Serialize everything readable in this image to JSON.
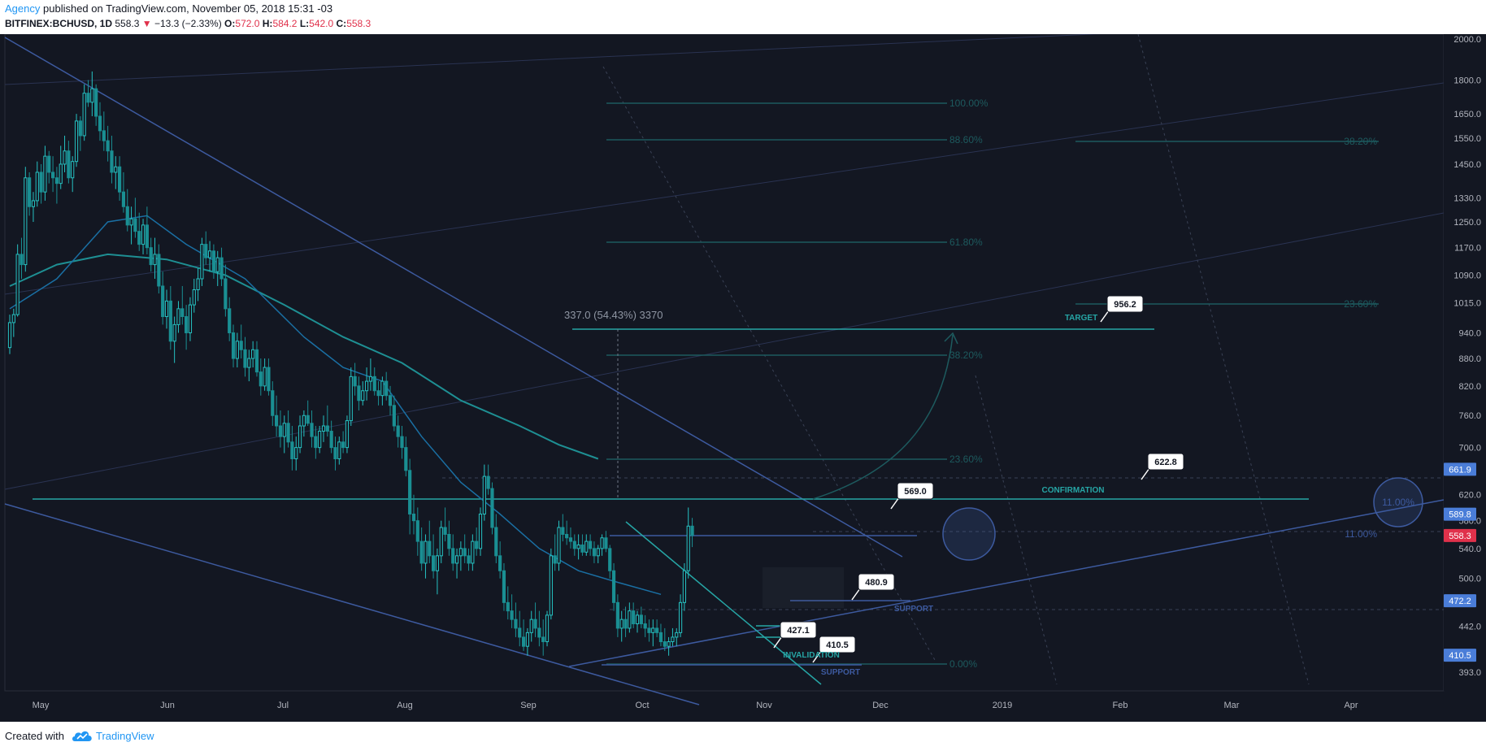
{
  "header": {
    "author": "Agency",
    "published": "published on TradingView.com, November 05, 2018 15:31 -03",
    "symbol": "BITFINEX:BCHUSD, 1D",
    "last": "558.3",
    "change_arrow": "▼",
    "change": "−13.3 (−2.33%)",
    "o_label": "O:",
    "o": "572.0",
    "h_label": "H:",
    "h": "584.2",
    "l_label": "L:",
    "l": "542.0",
    "c_label": "C:",
    "c": "558.3"
  },
  "footer": {
    "created_with": "Created with",
    "brand": "TradingView",
    "logo_icon": "tradingview-cloud-icon"
  },
  "colors": {
    "background": "#131722",
    "teal": "#26a5a5",
    "blue": "#3d5a9f",
    "fib": "#1d5a5e",
    "axis_text": "#b2b5be",
    "price_badge": "#4a7dd8",
    "last_badge": "#e0314b"
  },
  "chart_data": {
    "type": "candlestick",
    "scale": "log",
    "ylim": [
      380,
      2050
    ],
    "y_ticks": [
      "2000.0",
      "1800.0",
      "1650.0",
      "1550.0",
      "1450.0",
      "1330.0",
      "1250.0",
      "1170.0",
      "1090.0",
      "1015.0",
      "940.0",
      "880.0",
      "820.0",
      "760.0",
      "700.0",
      "620.0",
      "580.0",
      "540.0",
      "500.0",
      "442.0",
      "393.0"
    ],
    "x_ticks": [
      "May",
      "Jun",
      "Jul",
      "Aug",
      "Sep",
      "Oct",
      "Nov",
      "Dec",
      "2019",
      "Feb",
      "Mar",
      "Apr"
    ],
    "badges": [
      {
        "value": "661.9",
        "color": "blue"
      },
      {
        "value": "589.8",
        "color": "blue"
      },
      {
        "value": "558.3",
        "color": "red"
      },
      {
        "value": "472.2",
        "color": "blue"
      },
      {
        "value": "410.5",
        "color": "blue"
      }
    ],
    "fib_retracement_left": [
      "100.00%",
      "88.60%",
      "61.80%",
      "38.20%",
      "23.60%",
      "0.00%"
    ],
    "fib_extension_right": [
      "38.20%",
      "23.60%",
      "11.00%"
    ],
    "measure_label": "337.0 (54.43%) 3370",
    "callouts": [
      "956.2",
      "622.8",
      "569.0",
      "480.9",
      "427.1",
      "410.5"
    ],
    "annotations": [
      "TARGET",
      "CONFIRMATION",
      "SUPPORT",
      "INVALIDATION",
      "SUPPORT",
      "11.00%"
    ],
    "candles_ohlc": [
      [
        905,
        985,
        890,
        965
      ],
      [
        965,
        1000,
        930,
        985
      ],
      [
        985,
        1180,
        980,
        1150
      ],
      [
        1150,
        1200,
        1080,
        1120
      ],
      [
        1120,
        1440,
        1100,
        1400
      ],
      [
        1400,
        1420,
        1270,
        1300
      ],
      [
        1300,
        1350,
        1250,
        1320
      ],
      [
        1320,
        1460,
        1300,
        1420
      ],
      [
        1420,
        1450,
        1310,
        1350
      ],
      [
        1350,
        1520,
        1320,
        1480
      ],
      [
        1480,
        1500,
        1380,
        1420
      ],
      [
        1420,
        1480,
        1350,
        1400
      ],
      [
        1400,
        1440,
        1310,
        1380
      ],
      [
        1380,
        1520,
        1360,
        1450
      ],
      [
        1450,
        1560,
        1420,
        1500
      ],
      [
        1500,
        1540,
        1380,
        1400
      ],
      [
        1400,
        1480,
        1350,
        1460
      ],
      [
        1460,
        1650,
        1440,
        1620
      ],
      [
        1620,
        1640,
        1500,
        1560
      ],
      [
        1560,
        1780,
        1540,
        1740
      ],
      [
        1740,
        1800,
        1680,
        1700
      ],
      [
        1700,
        1840,
        1640,
        1760
      ],
      [
        1760,
        1780,
        1600,
        1640
      ],
      [
        1640,
        1700,
        1540,
        1580
      ],
      [
        1580,
        1660,
        1500,
        1540
      ],
      [
        1540,
        1600,
        1460,
        1500
      ],
      [
        1500,
        1560,
        1380,
        1420
      ],
      [
        1420,
        1480,
        1360,
        1440
      ],
      [
        1440,
        1480,
        1320,
        1350
      ],
      [
        1350,
        1420,
        1280,
        1300
      ],
      [
        1300,
        1360,
        1220,
        1240
      ],
      [
        1240,
        1300,
        1180,
        1260
      ],
      [
        1260,
        1330,
        1200,
        1220
      ],
      [
        1220,
        1280,
        1160,
        1180
      ],
      [
        1180,
        1260,
        1150,
        1240
      ],
      [
        1240,
        1300,
        1150,
        1170
      ],
      [
        1170,
        1200,
        1100,
        1120
      ],
      [
        1120,
        1200,
        1080,
        1150
      ],
      [
        1150,
        1180,
        1040,
        1060
      ],
      [
        1060,
        1100,
        960,
        980
      ],
      [
        980,
        1050,
        950,
        1020
      ],
      [
        1020,
        1060,
        900,
        920
      ],
      [
        920,
        980,
        870,
        960
      ],
      [
        960,
        1020,
        940,
        1000
      ],
      [
        1000,
        1060,
        960,
        980
      ],
      [
        980,
        1010,
        900,
        940
      ],
      [
        940,
        1030,
        920,
        1010
      ],
      [
        1010,
        1080,
        990,
        1050
      ],
      [
        1050,
        1110,
        1020,
        1080
      ],
      [
        1080,
        1200,
        1060,
        1180
      ],
      [
        1180,
        1220,
        1120,
        1140
      ],
      [
        1140,
        1190,
        1100,
        1160
      ],
      [
        1160,
        1180,
        1080,
        1100
      ],
      [
        1100,
        1160,
        1060,
        1140
      ],
      [
        1140,
        1170,
        1060,
        1080
      ],
      [
        1080,
        1120,
        980,
        1000
      ],
      [
        1000,
        1030,
        920,
        940
      ],
      [
        940,
        960,
        860,
        880
      ],
      [
        880,
        940,
        860,
        920
      ],
      [
        920,
        960,
        880,
        900
      ],
      [
        900,
        930,
        840,
        860
      ],
      [
        860,
        900,
        830,
        880
      ],
      [
        880,
        920,
        860,
        900
      ],
      [
        900,
        920,
        840,
        850
      ],
      [
        850,
        880,
        800,
        820
      ],
      [
        820,
        880,
        810,
        860
      ],
      [
        860,
        880,
        800,
        810
      ],
      [
        810,
        830,
        740,
        760
      ],
      [
        760,
        800,
        720,
        740
      ],
      [
        740,
        770,
        700,
        720
      ],
      [
        720,
        760,
        690,
        745
      ],
      [
        745,
        770,
        700,
        710
      ],
      [
        710,
        740,
        660,
        680
      ],
      [
        680,
        720,
        660,
        700
      ],
      [
        700,
        760,
        690,
        740
      ],
      [
        740,
        770,
        720,
        760
      ],
      [
        760,
        790,
        740,
        745
      ],
      [
        745,
        770,
        700,
        720
      ],
      [
        720,
        740,
        680,
        700
      ],
      [
        700,
        740,
        690,
        730
      ],
      [
        730,
        760,
        710,
        740
      ],
      [
        740,
        780,
        720,
        730
      ],
      [
        730,
        750,
        690,
        700
      ],
      [
        700,
        720,
        660,
        680
      ],
      [
        680,
        720,
        670,
        710
      ],
      [
        710,
        730,
        690,
        700
      ],
      [
        700,
        760,
        690,
        750
      ],
      [
        750,
        860,
        740,
        840
      ],
      [
        840,
        870,
        800,
        820
      ],
      [
        820,
        840,
        770,
        790
      ],
      [
        790,
        830,
        780,
        810
      ],
      [
        810,
        860,
        790,
        830
      ],
      [
        830,
        880,
        810,
        840
      ],
      [
        840,
        860,
        800,
        810
      ],
      [
        810,
        830,
        780,
        800
      ],
      [
        800,
        840,
        780,
        830
      ],
      [
        830,
        850,
        790,
        800
      ],
      [
        800,
        820,
        760,
        780
      ],
      [
        780,
        800,
        730,
        740
      ],
      [
        740,
        760,
        700,
        720
      ],
      [
        720,
        740,
        680,
        700
      ],
      [
        700,
        720,
        650,
        660
      ],
      [
        660,
        680,
        560,
        590
      ],
      [
        590,
        620,
        560,
        580
      ],
      [
        580,
        600,
        530,
        550
      ],
      [
        550,
        570,
        510,
        520
      ],
      [
        520,
        560,
        500,
        550
      ],
      [
        550,
        580,
        520,
        530
      ],
      [
        530,
        560,
        500,
        510
      ],
      [
        510,
        540,
        480,
        530
      ],
      [
        530,
        580,
        520,
        570
      ],
      [
        570,
        600,
        550,
        560
      ],
      [
        560,
        580,
        530,
        540
      ],
      [
        540,
        560,
        510,
        520
      ],
      [
        520,
        540,
        500,
        530
      ],
      [
        530,
        550,
        510,
        540
      ],
      [
        540,
        560,
        520,
        530
      ],
      [
        530,
        540,
        510,
        520
      ],
      [
        520,
        560,
        510,
        550
      ],
      [
        550,
        570,
        530,
        540
      ],
      [
        540,
        600,
        530,
        590
      ],
      [
        590,
        670,
        580,
        650
      ],
      [
        650,
        670,
        620,
        630
      ],
      [
        630,
        640,
        560,
        570
      ],
      [
        570,
        590,
        520,
        530
      ],
      [
        530,
        550,
        500,
        510
      ],
      [
        510,
        520,
        460,
        470
      ],
      [
        470,
        490,
        450,
        460
      ],
      [
        460,
        480,
        440,
        450
      ],
      [
        450,
        470,
        430,
        440
      ],
      [
        440,
        460,
        420,
        430
      ],
      [
        430,
        450,
        415,
        420
      ],
      [
        420,
        440,
        410,
        435
      ],
      [
        435,
        460,
        425,
        450
      ],
      [
        450,
        470,
        430,
        440
      ],
      [
        440,
        460,
        420,
        430
      ],
      [
        430,
        450,
        410,
        425
      ],
      [
        425,
        460,
        420,
        455
      ],
      [
        455,
        540,
        450,
        530
      ],
      [
        530,
        560,
        510,
        520
      ],
      [
        520,
        580,
        510,
        570
      ],
      [
        570,
        590,
        550,
        560
      ],
      [
        560,
        580,
        545,
        555
      ],
      [
        555,
        570,
        540,
        550
      ],
      [
        550,
        560,
        530,
        540
      ],
      [
        540,
        560,
        525,
        545
      ],
      [
        545,
        560,
        530,
        535
      ],
      [
        535,
        560,
        530,
        550
      ],
      [
        550,
        560,
        530,
        540
      ],
      [
        540,
        550,
        520,
        530
      ],
      [
        530,
        545,
        520,
        540
      ],
      [
        540,
        560,
        530,
        555
      ],
      [
        555,
        565,
        535,
        540
      ],
      [
        540,
        545,
        500,
        510
      ],
      [
        510,
        520,
        460,
        470
      ],
      [
        470,
        480,
        430,
        440
      ],
      [
        440,
        460,
        425,
        450
      ],
      [
        450,
        465,
        430,
        440
      ],
      [
        440,
        470,
        435,
        460
      ],
      [
        460,
        470,
        440,
        445
      ],
      [
        445,
        460,
        435,
        455
      ],
      [
        455,
        465,
        440,
        445
      ],
      [
        445,
        455,
        430,
        440
      ],
      [
        440,
        450,
        425,
        435
      ],
      [
        435,
        450,
        420,
        440
      ],
      [
        440,
        450,
        430,
        435
      ],
      [
        435,
        445,
        420,
        425
      ],
      [
        425,
        440,
        415,
        420
      ],
      [
        420,
        430,
        410,
        425
      ],
      [
        425,
        440,
        420,
        430
      ],
      [
        430,
        440,
        420,
        435
      ],
      [
        435,
        480,
        430,
        470
      ],
      [
        470,
        520,
        460,
        510
      ],
      [
        510,
        600,
        500,
        572
      ],
      [
        572,
        584.2,
        542,
        558.3
      ]
    ],
    "sma_fast": [
      [
        0,
        1000
      ],
      [
        12,
        1080
      ],
      [
        25,
        1250
      ],
      [
        35,
        1270
      ],
      [
        45,
        1180
      ],
      [
        60,
        1080
      ],
      [
        75,
        930
      ],
      [
        85,
        860
      ],
      [
        95,
        830
      ],
      [
        105,
        720
      ],
      [
        115,
        640
      ],
      [
        125,
        590
      ],
      [
        135,
        540
      ],
      [
        145,
        510
      ],
      [
        155,
        495
      ],
      [
        166,
        480
      ]
    ],
    "sma_slow": [
      [
        0,
        1060
      ],
      [
        12,
        1120
      ],
      [
        25,
        1150
      ],
      [
        40,
        1135
      ],
      [
        55,
        1090
      ],
      [
        70,
        1010
      ],
      [
        85,
        930
      ],
      [
        100,
        870
      ],
      [
        115,
        790
      ],
      [
        130,
        740
      ],
      [
        140,
        705
      ],
      [
        150,
        680
      ]
    ]
  }
}
